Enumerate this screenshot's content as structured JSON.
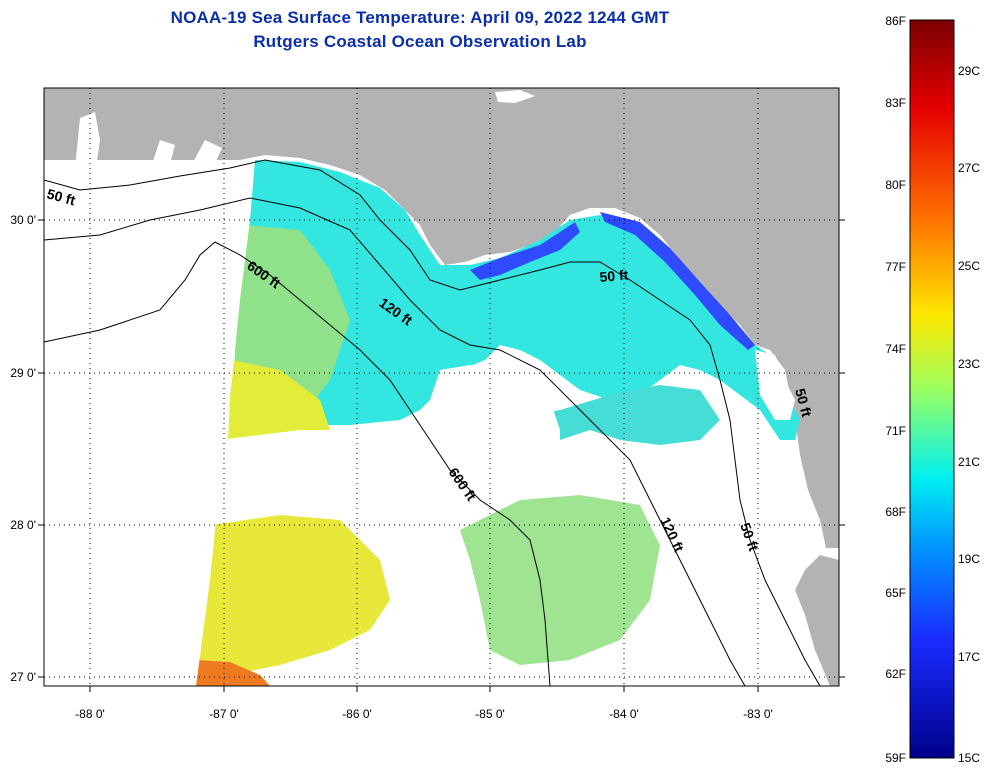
{
  "title": "NOAA-19 Sea Surface Temperature:  April 09, 2022 1244 GMT",
  "subtitle": "Rutgers Coastal Ocean Observation Lab",
  "map": {
    "lat_labels": [
      "30 0'",
      "29 0'",
      "28 0'",
      "27 0'"
    ],
    "lon_labels": [
      "-88 0'",
      "-87 0'",
      "-86 0'",
      "-85 0'",
      "-84 0'",
      "-83 0'"
    ],
    "contour_labels": [
      "50 ft",
      "600 ft",
      "120 ft",
      "50 ft",
      "600 ft",
      "120 ft",
      "50 ft",
      "50 ft"
    ],
    "colors": {
      "land": "#b3b3b3",
      "cloud": "#ffffff"
    }
  },
  "colorbar": {
    "fahrenheit": [
      "86F",
      "83F",
      "80F",
      "77F",
      "74F",
      "71F",
      "68F",
      "65F",
      "62F",
      "59F"
    ],
    "celsius": [
      "29C",
      "27C",
      "25C",
      "23C",
      "21C",
      "19C",
      "17C",
      "15C"
    ],
    "colors": [
      "#800000",
      "#ff0000",
      "#ff8000",
      "#ffff00",
      "#80ff80",
      "#00ffff",
      "#0080ff",
      "#0000ff",
      "#000080"
    ]
  }
}
